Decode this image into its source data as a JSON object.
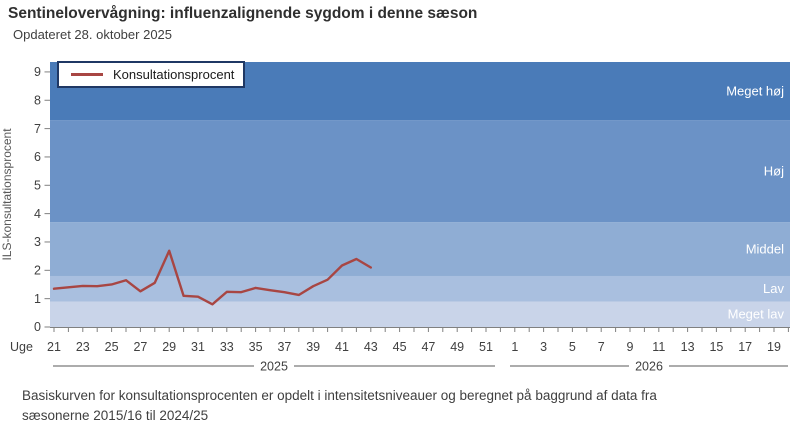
{
  "header": {
    "title": "Sentinelovervågning: influenzalignende sygdom i denne sæson",
    "subtitle": "Opdateret 28. oktober 2025"
  },
  "legend": {
    "label": "Konsultationsprocent"
  },
  "footer": {
    "line1": "Basiskurven for konsultationsprocenten er opdelt i intensitetsniveauer og beregnet på baggrund af data fra",
    "line2": "sæsonerne  2015/16  til 2024/25"
  },
  "chart_data": {
    "type": "line",
    "title": "Sentinelovervågning: influenzalignende sygdom i denne sæson",
    "ylabel": "ILS-konsultationsprocent",
    "x_prefix": "Uge",
    "ylim": [
      0,
      9.35
    ],
    "y_ticks": [
      0,
      1,
      2,
      3,
      4,
      5,
      6,
      7,
      8,
      9
    ],
    "grid": false,
    "legend_position": "top-left",
    "x": [
      21,
      22,
      23,
      24,
      25,
      26,
      27,
      28,
      29,
      30,
      31,
      32,
      33,
      34,
      35,
      36,
      37,
      38,
      39,
      40,
      41,
      42,
      43
    ],
    "series": [
      {
        "name": "Konsultationsprocent",
        "color": "#a84643",
        "values": [
          1.35,
          1.4,
          1.45,
          1.44,
          1.5,
          1.65,
          1.26,
          1.56,
          2.69,
          1.1,
          1.07,
          0.8,
          1.24,
          1.23,
          1.38,
          1.3,
          1.23,
          1.13,
          1.44,
          1.67,
          2.17,
          2.4,
          2.1
        ]
      }
    ],
    "x_tick_count": 52,
    "x_tick_labels": [
      "21",
      "23",
      "25",
      "27",
      "29",
      "31",
      "33",
      "35",
      "37",
      "39",
      "41",
      "43",
      "45",
      "47",
      "49",
      "51",
      "1",
      "3",
      "5",
      "7",
      "9",
      "11",
      "13",
      "15",
      "17",
      "19"
    ],
    "year_groups": [
      {
        "label": "2025",
        "x_from": 53,
        "x_to": 495
      },
      {
        "label": "2026",
        "x_from": 510,
        "x_to": 788
      }
    ],
    "bands": [
      {
        "label": "Meget lav",
        "from": 0,
        "to": 0.9,
        "color": "#c9d4e9"
      },
      {
        "label": "Lav",
        "from": 0.9,
        "to": 1.8,
        "color": "#a9bfdf"
      },
      {
        "label": "Middel",
        "from": 1.8,
        "to": 3.7,
        "color": "#8fadd4"
      },
      {
        "label": "Høj",
        "from": 3.7,
        "to": 7.3,
        "color": "#6b92c6"
      },
      {
        "label": "Meget høj",
        "from": 7.3,
        "to": 9.35,
        "color": "#4a7bb8"
      }
    ]
  }
}
